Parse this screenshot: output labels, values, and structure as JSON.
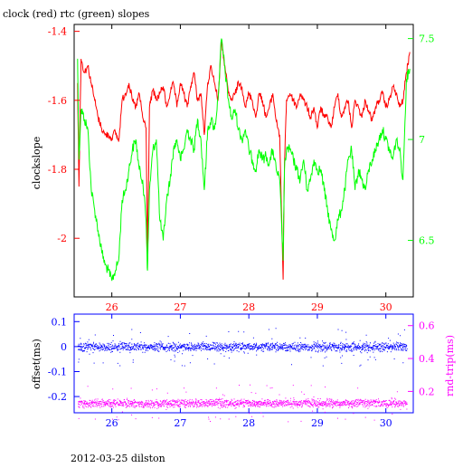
{
  "title": "clock (red) rtc (green) slopes",
  "footer": "2012-03-25 dilston",
  "colors": {
    "red": "#ff0000",
    "green": "#00ff00",
    "blue": "#0000ff",
    "magenta": "#ff00ff",
    "black": "#000000"
  },
  "chart_data": [
    {
      "type": "line",
      "title": "clock (red) rtc (green) slopes",
      "xlim": [
        25.45,
        30.4
      ],
      "xticks": [
        "26",
        "27",
        "28",
        "29",
        "30"
      ],
      "ylabel": "clockslope",
      "ylim": [
        -2.17,
        -1.38
      ],
      "yticks_left": [
        "-1.4",
        "-1.6",
        "-1.8",
        "-2"
      ],
      "y2lim": [
        6.22,
        7.57
      ],
      "yticks_right": [
        "7.5",
        "7",
        "6.5"
      ],
      "series": [
        {
          "name": "clock",
          "axis": "left",
          "color": "#ff0000",
          "x": [
            25.5,
            25.52,
            25.55,
            25.6,
            25.65,
            25.7,
            25.75,
            25.8,
            25.85,
            25.9,
            25.95,
            26.0,
            26.05,
            26.1,
            26.15,
            26.2,
            26.25,
            26.3,
            26.35,
            26.4,
            26.45,
            26.5,
            26.52,
            26.55,
            26.6,
            26.65,
            26.7,
            26.75,
            26.8,
            26.85,
            26.9,
            26.95,
            27.0,
            27.05,
            27.1,
            27.15,
            27.2,
            27.25,
            27.3,
            27.35,
            27.4,
            27.45,
            27.5,
            27.55,
            27.6,
            27.65,
            27.7,
            27.75,
            27.8,
            27.85,
            27.9,
            27.95,
            28.0,
            28.05,
            28.1,
            28.15,
            28.2,
            28.25,
            28.3,
            28.35,
            28.4,
            28.45,
            28.5,
            28.52,
            28.55,
            28.6,
            28.65,
            28.7,
            28.75,
            28.8,
            28.85,
            28.9,
            28.95,
            29.0,
            29.05,
            29.1,
            29.15,
            29.2,
            29.25,
            29.3,
            29.35,
            29.4,
            29.45,
            29.5,
            29.55,
            29.6,
            29.65,
            29.7,
            29.75,
            29.8,
            29.85,
            29.9,
            29.95,
            30.0,
            30.05,
            30.1,
            30.15,
            30.2,
            30.25,
            30.3,
            30.35
          ],
          "values": [
            -1.55,
            -1.85,
            -1.48,
            -1.52,
            -1.5,
            -1.55,
            -1.6,
            -1.65,
            -1.68,
            -1.7,
            -1.7,
            -1.71,
            -1.69,
            -1.72,
            -1.6,
            -1.58,
            -1.55,
            -1.6,
            -1.62,
            -1.58,
            -1.65,
            -1.68,
            -2.06,
            -1.62,
            -1.57,
            -1.6,
            -1.58,
            -1.56,
            -1.62,
            -1.58,
            -1.55,
            -1.62,
            -1.55,
            -1.58,
            -1.62,
            -1.56,
            -1.52,
            -1.6,
            -1.58,
            -1.7,
            -1.55,
            -1.5,
            -1.55,
            -1.6,
            -1.43,
            -1.5,
            -1.58,
            -1.6,
            -1.58,
            -1.55,
            -1.56,
            -1.62,
            -1.58,
            -1.6,
            -1.65,
            -1.58,
            -1.6,
            -1.65,
            -1.62,
            -1.58,
            -1.66,
            -1.7,
            -2.12,
            -1.78,
            -1.6,
            -1.58,
            -1.6,
            -1.62,
            -1.58,
            -1.6,
            -1.62,
            -1.65,
            -1.62,
            -1.68,
            -1.62,
            -1.65,
            -1.65,
            -1.68,
            -1.62,
            -1.58,
            -1.65,
            -1.62,
            -1.6,
            -1.68,
            -1.6,
            -1.62,
            -1.65,
            -1.6,
            -1.63,
            -1.66,
            -1.62,
            -1.6,
            -1.58,
            -1.62,
            -1.6,
            -1.56,
            -1.58,
            -1.62,
            -1.6,
            -1.52,
            -1.46
          ]
        },
        {
          "name": "rtc",
          "axis": "right",
          "color": "#00ff00",
          "x": [
            25.5,
            25.52,
            25.55,
            25.6,
            25.65,
            25.7,
            25.75,
            25.8,
            25.85,
            25.9,
            25.95,
            26.0,
            26.05,
            26.1,
            26.15,
            26.2,
            26.25,
            26.3,
            26.35,
            26.4,
            26.45,
            26.5,
            26.52,
            26.55,
            26.6,
            26.65,
            26.7,
            26.75,
            26.8,
            26.85,
            26.9,
            26.95,
            27.0,
            27.05,
            27.1,
            27.15,
            27.2,
            27.25,
            27.3,
            27.35,
            27.4,
            27.45,
            27.5,
            27.55,
            27.6,
            27.65,
            27.7,
            27.75,
            27.8,
            27.85,
            27.9,
            27.95,
            28.0,
            28.05,
            28.1,
            28.15,
            28.2,
            28.25,
            28.3,
            28.35,
            28.4,
            28.45,
            28.5,
            28.52,
            28.55,
            28.6,
            28.65,
            28.7,
            28.75,
            28.8,
            28.85,
            28.9,
            28.95,
            29.0,
            29.05,
            29.1,
            29.15,
            29.2,
            29.25,
            29.3,
            29.35,
            29.4,
            29.45,
            29.5,
            29.55,
            29.6,
            29.65,
            29.7,
            29.75,
            29.8,
            29.85,
            29.9,
            29.95,
            30.0,
            30.05,
            30.1,
            30.15,
            30.2,
            30.25,
            30.3,
            30.35
          ],
          "values": [
            7.4,
            6.9,
            7.15,
            7.1,
            7.05,
            6.75,
            6.65,
            6.55,
            6.45,
            6.38,
            6.35,
            6.3,
            6.35,
            6.4,
            6.7,
            6.75,
            6.85,
            6.95,
            7.0,
            6.85,
            6.8,
            6.6,
            6.35,
            6.75,
            6.95,
            7.0,
            6.6,
            6.5,
            6.7,
            6.8,
            6.95,
            7.0,
            6.9,
            6.95,
            7.05,
            7.0,
            6.95,
            7.1,
            7.0,
            6.75,
            7.05,
            7.1,
            7.05,
            7.2,
            7.5,
            7.35,
            7.2,
            7.1,
            7.15,
            7.05,
            7.0,
            7.05,
            6.95,
            6.9,
            6.85,
            6.95,
            6.9,
            6.92,
            6.88,
            6.95,
            6.85,
            6.8,
            6.4,
            6.85,
            6.95,
            6.95,
            6.9,
            6.85,
            6.8,
            6.9,
            6.75,
            6.8,
            6.9,
            6.85,
            6.85,
            6.75,
            6.65,
            6.55,
            6.5,
            6.6,
            6.65,
            6.75,
            6.9,
            6.95,
            6.75,
            6.85,
            6.8,
            6.75,
            6.85,
            6.9,
            6.95,
            7.0,
            7.05,
            7.0,
            6.95,
            6.9,
            7.0,
            6.95,
            6.8,
            7.3,
            7.35
          ]
        }
      ]
    },
    {
      "type": "scatter",
      "xlim": [
        25.45,
        30.4
      ],
      "xticks": [
        "26",
        "27",
        "28",
        "29",
        "30"
      ],
      "ylabel": "offset(ms)",
      "ylim": [
        -0.265,
        0.13
      ],
      "yticks_left": [
        "0.1",
        "0",
        "-0.1",
        "-0.2"
      ],
      "y2label": "rnd-trip(ms)",
      "y2lim": [
        0.07,
        0.67
      ],
      "yticks_right": [
        "0.6",
        "0.4",
        "0.2"
      ],
      "series": [
        {
          "name": "offset",
          "axis": "left",
          "color": "#0000ff",
          "x_range": [
            25.5,
            30.3
          ],
          "center": 0.0,
          "spread": 0.012
        },
        {
          "name": "rnd-trip",
          "axis": "right",
          "color": "#ff00ff",
          "x_range": [
            25.5,
            30.3
          ],
          "center": 0.13,
          "spread": 0.008
        }
      ]
    }
  ]
}
